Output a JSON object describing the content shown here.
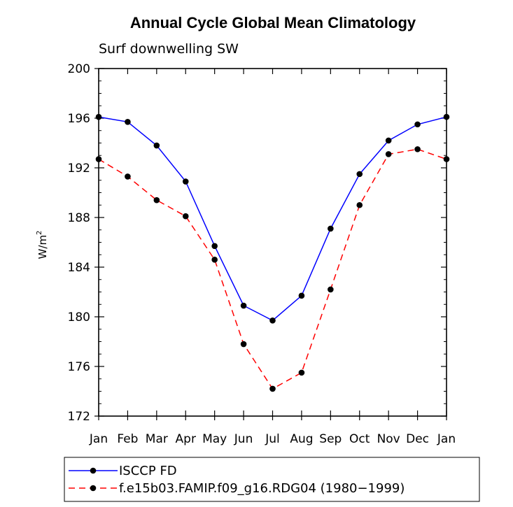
{
  "chart_data": {
    "type": "line",
    "title": "Annual Cycle Global Mean Climatology",
    "subtitle": "Surf downwelling SW",
    "ylabel": "W/m",
    "ylabel_superscript": "2",
    "xlabel": "",
    "categories": [
      "Jan",
      "Feb",
      "Mar",
      "Apr",
      "May",
      "Jun",
      "Jul",
      "Aug",
      "Sep",
      "Oct",
      "Nov",
      "Dec",
      "Jan"
    ],
    "ylim": [
      172,
      200
    ],
    "yticks": [
      172,
      176,
      180,
      184,
      188,
      192,
      196,
      200
    ],
    "series": [
      {
        "name": "ISCCP FD",
        "color": "#0000ff",
        "dash": "solid",
        "values": [
          196.1,
          195.7,
          193.8,
          190.9,
          185.7,
          180.9,
          179.7,
          181.7,
          187.1,
          191.5,
          194.2,
          195.5,
          196.1
        ]
      },
      {
        "name": "f.e15b03.FAMIP.f09_g16.RDG04 (1980−1999)",
        "color": "#ff0000",
        "dash": "dashed",
        "values": [
          192.7,
          191.3,
          189.4,
          188.1,
          184.6,
          177.8,
          174.2,
          175.5,
          182.2,
          189.0,
          193.1,
          193.5,
          192.7
        ]
      }
    ],
    "legend_position": "bottom"
  }
}
